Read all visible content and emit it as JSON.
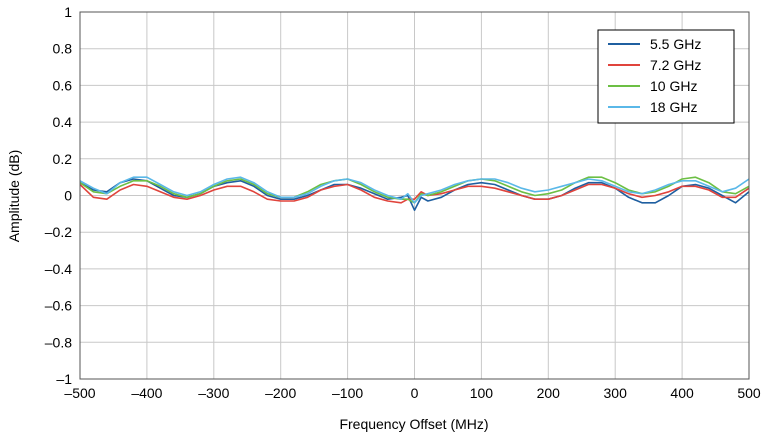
{
  "chart_data": {
    "type": "line",
    "xlabel": "Frequency Offset (MHz)",
    "ylabel": "Amplitude (dB)",
    "xlim": [
      -500,
      500
    ],
    "ylim": [
      -1,
      1
    ],
    "xticks": [
      -500,
      -400,
      -300,
      -200,
      -100,
      0,
      100,
      200,
      300,
      400,
      500
    ],
    "yticks": [
      -1,
      -0.8,
      -0.6,
      -0.4,
      -0.2,
      0,
      0.2,
      0.4,
      0.6,
      0.8,
      1
    ],
    "xtick_labels": [
      "–500",
      "–400",
      "–300",
      "–200",
      "–100",
      "0",
      "100",
      "200",
      "300",
      "400",
      "500"
    ],
    "ytick_labels": [
      "–1",
      "–0.8",
      "–0.6",
      "–0.4",
      "–0.2",
      "0",
      "0.2",
      "0.4",
      "0.6",
      "0.8",
      "1"
    ],
    "grid": true,
    "legend_position": "top-right",
    "x": [
      -500,
      -480,
      -460,
      -440,
      -420,
      -400,
      -380,
      -360,
      -340,
      -320,
      -300,
      -280,
      -260,
      -240,
      -220,
      -200,
      -180,
      -160,
      -140,
      -120,
      -100,
      -80,
      -60,
      -40,
      -20,
      -10,
      0,
      10,
      20,
      40,
      60,
      80,
      100,
      120,
      140,
      160,
      180,
      200,
      220,
      240,
      260,
      280,
      300,
      320,
      340,
      360,
      380,
      400,
      420,
      440,
      460,
      480,
      500
    ],
    "series": [
      {
        "name": "5.5 GHz",
        "color": "#1f5fa0",
        "values": [
          0.07,
          0.03,
          0.02,
          0.07,
          0.09,
          0.08,
          0.04,
          0.0,
          -0.01,
          0.01,
          0.05,
          0.07,
          0.08,
          0.05,
          0.0,
          -0.02,
          -0.02,
          0.0,
          0.03,
          0.06,
          0.06,
          0.04,
          0.01,
          -0.02,
          -0.01,
          0.0,
          -0.08,
          -0.01,
          -0.03,
          -0.01,
          0.03,
          0.06,
          0.07,
          0.06,
          0.03,
          0.0,
          -0.02,
          -0.02,
          0.0,
          0.04,
          0.07,
          0.07,
          0.04,
          -0.01,
          -0.04,
          -0.04,
          0.0,
          0.05,
          0.06,
          0.04,
          0.0,
          -0.04,
          0.02
        ]
      },
      {
        "name": "7.2 GHz",
        "color": "#e0443c",
        "values": [
          0.06,
          -0.01,
          -0.02,
          0.03,
          0.06,
          0.05,
          0.02,
          -0.01,
          -0.02,
          0.0,
          0.03,
          0.05,
          0.05,
          0.02,
          -0.02,
          -0.03,
          -0.03,
          -0.01,
          0.03,
          0.05,
          0.06,
          0.03,
          -0.01,
          -0.03,
          -0.04,
          -0.02,
          -0.02,
          0.02,
          0.0,
          0.01,
          0.03,
          0.05,
          0.05,
          0.04,
          0.02,
          0.0,
          -0.02,
          -0.02,
          0.0,
          0.03,
          0.06,
          0.06,
          0.04,
          0.01,
          -0.01,
          0.0,
          0.02,
          0.05,
          0.05,
          0.03,
          -0.01,
          -0.01,
          0.04
        ]
      },
      {
        "name": "10 GHz",
        "color": "#6cbf44",
        "values": [
          0.07,
          0.02,
          0.01,
          0.05,
          0.08,
          0.08,
          0.05,
          0.01,
          -0.01,
          0.01,
          0.05,
          0.08,
          0.09,
          0.06,
          0.01,
          -0.01,
          -0.01,
          0.02,
          0.06,
          0.08,
          0.09,
          0.06,
          0.02,
          -0.01,
          -0.02,
          -0.02,
          -0.04,
          0.01,
          0.0,
          0.02,
          0.05,
          0.08,
          0.09,
          0.08,
          0.05,
          0.02,
          0.0,
          0.01,
          0.03,
          0.07,
          0.1,
          0.1,
          0.07,
          0.03,
          0.01,
          0.02,
          0.05,
          0.09,
          0.1,
          0.07,
          0.02,
          0.01,
          0.05
        ]
      },
      {
        "name": "18 GHz",
        "color": "#5ab8e8",
        "values": [
          0.08,
          0.04,
          0.01,
          0.07,
          0.1,
          0.1,
          0.06,
          0.02,
          0.0,
          0.02,
          0.06,
          0.09,
          0.1,
          0.07,
          0.02,
          -0.01,
          -0.01,
          0.01,
          0.05,
          0.08,
          0.09,
          0.07,
          0.03,
          0.0,
          -0.02,
          0.01,
          -0.04,
          0.0,
          0.01,
          0.03,
          0.06,
          0.08,
          0.09,
          0.09,
          0.07,
          0.04,
          0.02,
          0.03,
          0.05,
          0.07,
          0.09,
          0.08,
          0.05,
          0.02,
          0.01,
          0.03,
          0.06,
          0.08,
          0.08,
          0.05,
          0.02,
          0.04,
          0.09
        ]
      }
    ]
  }
}
